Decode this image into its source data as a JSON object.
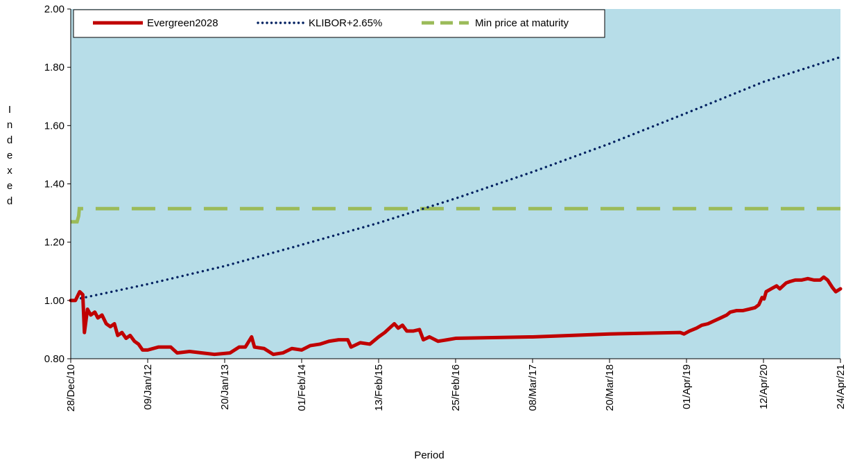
{
  "chart_data": {
    "type": "line",
    "title": "",
    "xlabel": "Period",
    "ylabel": "Indexed",
    "ylim": [
      0.8,
      2.0
    ],
    "yticks": [
      "0.80",
      "1.00",
      "1.20",
      "1.40",
      "1.60",
      "1.80",
      "2.00"
    ],
    "xticks": [
      "28/Dec/10",
      "09/Jan/12",
      "20/Jan/13",
      "01/Feb/14",
      "13/Feb/15",
      "25/Feb/16",
      "08/Mar/17",
      "20/Mar/18",
      "01/Apr/19",
      "12/Apr/20",
      "24/Apr/21"
    ],
    "grid": false,
    "legend_position": "top",
    "background": "#b7dde8",
    "series": [
      {
        "name": "Evergreen2028",
        "color": "#c00000",
        "style": "solid",
        "points": [
          [
            "2010-12-28",
            1.0
          ],
          [
            "2011-01-20",
            1.0
          ],
          [
            "2011-02-10",
            1.03
          ],
          [
            "2011-02-25",
            1.02
          ],
          [
            "2011-03-05",
            0.89
          ],
          [
            "2011-03-20",
            0.97
          ],
          [
            "2011-04-05",
            0.95
          ],
          [
            "2011-04-25",
            0.96
          ],
          [
            "2011-05-10",
            0.94
          ],
          [
            "2011-05-30",
            0.95
          ],
          [
            "2011-06-20",
            0.92
          ],
          [
            "2011-07-10",
            0.91
          ],
          [
            "2011-07-30",
            0.92
          ],
          [
            "2011-08-15",
            0.88
          ],
          [
            "2011-09-05",
            0.89
          ],
          [
            "2011-09-25",
            0.87
          ],
          [
            "2011-10-15",
            0.88
          ],
          [
            "2011-11-05",
            0.86
          ],
          [
            "2011-11-25",
            0.85
          ],
          [
            "2011-12-15",
            0.83
          ],
          [
            "2012-01-09",
            0.83
          ],
          [
            "2012-03-01",
            0.84
          ],
          [
            "2012-05-01",
            0.84
          ],
          [
            "2012-06-01",
            0.82
          ],
          [
            "2012-08-01",
            0.825
          ],
          [
            "2012-10-01",
            0.82
          ],
          [
            "2012-12-01",
            0.815
          ],
          [
            "2013-02-15",
            0.82
          ],
          [
            "2013-04-01",
            0.84
          ],
          [
            "2013-05-01",
            0.84
          ],
          [
            "2013-06-01",
            0.875
          ],
          [
            "2013-06-15",
            0.84
          ],
          [
            "2013-08-01",
            0.835
          ],
          [
            "2013-09-15",
            0.815
          ],
          [
            "2013-11-01",
            0.82
          ],
          [
            "2013-12-15",
            0.835
          ],
          [
            "2014-02-01",
            0.83
          ],
          [
            "2014-03-15",
            0.845
          ],
          [
            "2014-05-01",
            0.85
          ],
          [
            "2014-06-15",
            0.86
          ],
          [
            "2014-08-01",
            0.865
          ],
          [
            "2014-09-15",
            0.865
          ],
          [
            "2014-10-01",
            0.84
          ],
          [
            "2014-11-15",
            0.855
          ],
          [
            "2015-01-01",
            0.85
          ],
          [
            "2015-02-13",
            0.875
          ],
          [
            "2015-03-15",
            0.89
          ],
          [
            "2015-04-15",
            0.91
          ],
          [
            "2015-05-01",
            0.92
          ],
          [
            "2015-05-20",
            0.905
          ],
          [
            "2015-06-10",
            0.915
          ],
          [
            "2015-07-01",
            0.895
          ],
          [
            "2015-08-01",
            0.895
          ],
          [
            "2015-09-01",
            0.9
          ],
          [
            "2015-09-20",
            0.865
          ],
          [
            "2015-10-20",
            0.875
          ],
          [
            "2015-12-01",
            0.86
          ],
          [
            "2016-01-15",
            0.865
          ],
          [
            "2016-02-25",
            0.87
          ],
          [
            "2017-03-08",
            0.875
          ],
          [
            "2018-03-20",
            0.885
          ],
          [
            "2019-03-01",
            0.89
          ],
          [
            "2019-03-20",
            0.885
          ],
          [
            "2019-04-15",
            0.895
          ],
          [
            "2019-05-20",
            0.905
          ],
          [
            "2019-06-15",
            0.915
          ],
          [
            "2019-07-15",
            0.92
          ],
          [
            "2019-08-15",
            0.93
          ],
          [
            "2019-09-15",
            0.94
          ],
          [
            "2019-10-15",
            0.95
          ],
          [
            "2019-11-01",
            0.96
          ],
          [
            "2019-12-01",
            0.965
          ],
          [
            "2020-01-01",
            0.965
          ],
          [
            "2020-02-01",
            0.97
          ],
          [
            "2020-03-01",
            0.975
          ],
          [
            "2020-03-20",
            0.985
          ],
          [
            "2020-04-05",
            1.01
          ],
          [
            "2020-04-15",
            1.005
          ],
          [
            "2020-04-25",
            1.03
          ],
          [
            "2020-05-20",
            1.04
          ],
          [
            "2020-06-15",
            1.05
          ],
          [
            "2020-07-01",
            1.04
          ],
          [
            "2020-08-01",
            1.06
          ],
          [
            "2020-08-20",
            1.065
          ],
          [
            "2020-09-15",
            1.07
          ],
          [
            "2020-10-15",
            1.07
          ],
          [
            "2020-11-15",
            1.075
          ],
          [
            "2020-12-15",
            1.07
          ],
          [
            "2021-01-15",
            1.07
          ],
          [
            "2021-02-01",
            1.08
          ],
          [
            "2021-02-20",
            1.07
          ],
          [
            "2021-03-15",
            1.045
          ],
          [
            "2021-04-01",
            1.03
          ],
          [
            "2021-04-24",
            1.04
          ]
        ]
      },
      {
        "name": "KLIBOR+2.65%",
        "color": "#002060",
        "style": "dotted",
        "points": [
          [
            "2010-12-28",
            1.0
          ],
          [
            "2012-01-09",
            1.056
          ],
          [
            "2013-01-20",
            1.118
          ],
          [
            "2014-02-01",
            1.191
          ],
          [
            "2015-02-13",
            1.266
          ],
          [
            "2016-02-25",
            1.35
          ],
          [
            "2017-03-08",
            1.441
          ],
          [
            "2018-03-20",
            1.538
          ],
          [
            "2019-04-01",
            1.643
          ],
          [
            "2020-04-12",
            1.75
          ],
          [
            "2021-04-24",
            1.835
          ]
        ]
      },
      {
        "name": "Min price at maturity",
        "color": "#9bbb59",
        "style": "dashed",
        "points": [
          [
            "2010-12-28",
            1.27
          ],
          [
            "2011-01-28",
            1.27
          ],
          [
            "2011-02-05",
            1.29
          ],
          [
            "2011-02-08",
            1.315
          ],
          [
            "2021-04-24",
            1.315
          ]
        ]
      }
    ]
  }
}
